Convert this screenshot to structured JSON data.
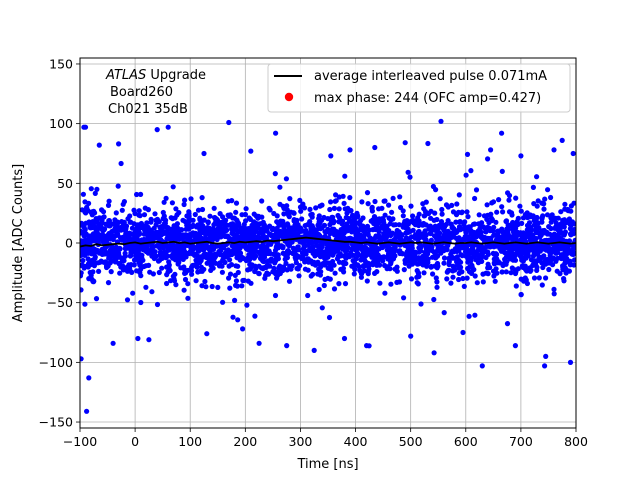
{
  "chart_data": {
    "type": "scatter",
    "xlabel": "Time [ns]",
    "ylabel": "Amplitude [ADC Counts]",
    "xlim": [
      -100,
      800
    ],
    "ylim": [
      -155,
      155
    ],
    "x_ticks": [
      -100,
      0,
      100,
      200,
      300,
      400,
      500,
      600,
      700,
      800
    ],
    "y_ticks": [
      -150,
      -100,
      -50,
      0,
      50,
      100,
      150
    ],
    "y_tick_labels": [
      "−150",
      "−100",
      "−50",
      "0",
      "50",
      "100",
      "150"
    ],
    "x_tick_labels": [
      "−100",
      "0",
      "100",
      "200",
      "300",
      "400",
      "500",
      "600",
      "700",
      "800"
    ],
    "grid": true,
    "legend_position": "top-right",
    "annotation": {
      "italic": "ATLAS",
      "rest": " Upgrade",
      "line2": "Board260",
      "line3": "Ch021 35dB"
    },
    "series": [
      {
        "name": "average interleaved pulse 0.071mA",
        "kind": "line",
        "color": "#000000",
        "x": [
          -100,
          -90,
          -80,
          -70,
          -60,
          -50,
          -40,
          -30,
          -20,
          -10,
          0,
          10,
          20,
          30,
          40,
          50,
          60,
          70,
          80,
          90,
          100,
          110,
          120,
          130,
          140,
          150,
          160,
          170,
          180,
          190,
          200,
          210,
          220,
          230,
          240,
          250,
          260,
          270,
          280,
          290,
          300,
          310,
          320,
          330,
          340,
          350,
          360,
          370,
          380,
          390,
          400,
          410,
          420,
          430,
          440,
          450,
          460,
          470,
          480,
          490,
          500,
          510,
          520,
          530,
          540,
          550,
          560,
          570,
          580,
          590,
          600,
          610,
          620,
          630,
          640,
          650,
          660,
          670,
          680,
          690,
          700,
          710,
          720,
          730,
          740,
          750,
          760,
          770,
          780,
          790,
          800
        ],
        "y": [
          -3,
          -2,
          -2.5,
          -1,
          -2,
          -1.5,
          -1,
          -0.5,
          -1,
          0,
          0.5,
          -0.5,
          0,
          0.5,
          1,
          0,
          0.5,
          1,
          0,
          0.5,
          -0.5,
          0,
          0.5,
          1,
          0,
          -0.5,
          0,
          0.5,
          0,
          1,
          0.5,
          1,
          1.5,
          1,
          2,
          1.5,
          2,
          2.5,
          3,
          3.5,
          4,
          4.5,
          4,
          3.5,
          3,
          2.5,
          2,
          1.5,
          1,
          1,
          0.5,
          0,
          0.5,
          0,
          -0.5,
          0,
          0.5,
          0,
          -0.5,
          0,
          0.5,
          0,
          0.5,
          0,
          -0.5,
          0,
          0.5,
          0,
          -0.5,
          0,
          0,
          0.5,
          0,
          -0.5,
          0,
          0.5,
          0,
          -0.5,
          0,
          0.5,
          0,
          -0.5,
          0,
          0.5,
          0,
          -0.5,
          0,
          0.5,
          0,
          -0.5,
          0
        ]
      },
      {
        "name": "max phase: 244 (OFC amp=0.427)",
        "kind": "scatter",
        "color": "#0000ff",
        "legend_marker_color": "#ff0000",
        "n_points": 3200,
        "core_sigma": 14,
        "outliers": [
          {
            "x": -98,
            "y": -97
          },
          {
            "x": -93,
            "y": 97
          },
          {
            "x": -90,
            "y": 97
          },
          {
            "x": -88,
            "y": -141
          },
          {
            "x": -84,
            "y": -113
          },
          {
            "x": -65,
            "y": 82
          },
          {
            "x": -40,
            "y": -84
          },
          {
            "x": -30,
            "y": 83
          },
          {
            "x": 5,
            "y": -80
          },
          {
            "x": 25,
            "y": -81
          },
          {
            "x": 40,
            "y": 95
          },
          {
            "x": 60,
            "y": 97
          },
          {
            "x": 125,
            "y": 75
          },
          {
            "x": 130,
            "y": -76
          },
          {
            "x": 170,
            "y": 101
          },
          {
            "x": 195,
            "y": -72
          },
          {
            "x": 210,
            "y": 77
          },
          {
            "x": 225,
            "y": -84
          },
          {
            "x": 255,
            "y": 92
          },
          {
            "x": 275,
            "y": -86
          },
          {
            "x": 325,
            "y": -90
          },
          {
            "x": 355,
            "y": 73
          },
          {
            "x": 380,
            "y": -80
          },
          {
            "x": 390,
            "y": 78
          },
          {
            "x": 420,
            "y": -86
          },
          {
            "x": 435,
            "y": 80
          },
          {
            "x": 490,
            "y": 84
          },
          {
            "x": 500,
            "y": -78
          },
          {
            "x": 555,
            "y": 102
          },
          {
            "x": 595,
            "y": -75
          },
          {
            "x": 630,
            "y": -103
          },
          {
            "x": 645,
            "y": 78
          },
          {
            "x": 665,
            "y": 92
          },
          {
            "x": 690,
            "y": -86
          },
          {
            "x": 700,
            "y": 73
          },
          {
            "x": 743,
            "y": -103
          },
          {
            "x": 745,
            "y": -95
          },
          {
            "x": 760,
            "y": 78
          },
          {
            "x": 775,
            "y": 86
          },
          {
            "x": 790,
            "y": -100
          },
          {
            "x": 795,
            "y": 75
          }
        ]
      }
    ]
  }
}
